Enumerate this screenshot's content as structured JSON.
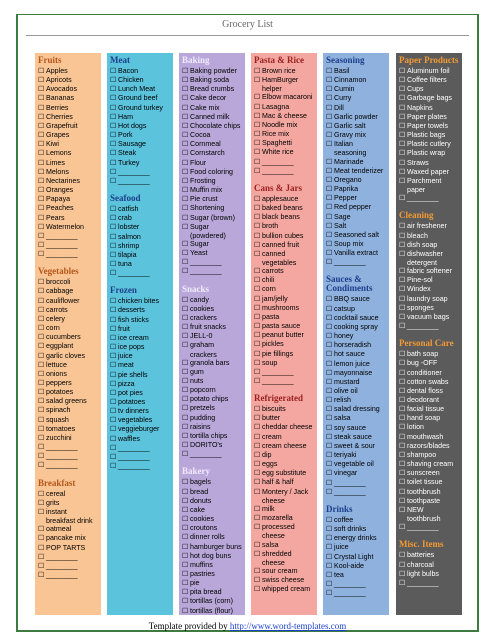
{
  "title": "Grocery List",
  "footer": {
    "text": "Template provided by",
    "link": "http://www.word-templates.com"
  },
  "columns": [
    {
      "sections": [
        {
          "heading": "Fruits",
          "items": [
            "Apples",
            "Apricots",
            "Avocados",
            "Bananas",
            "Berries",
            "Cherries",
            "Grapefruit",
            "Grapes",
            "Kiwi",
            "Lemons",
            "Limes",
            "Melons",
            "Nectarines",
            "Oranges",
            "Papaya",
            "Peaches",
            "Pears",
            "Watermelon",
            "________",
            "________",
            "________"
          ]
        },
        {
          "heading": "Vegetables",
          "items": [
            "broccoli",
            "cabbage",
            "cauliflower",
            "carrots",
            "celery",
            "corn",
            "cucumbers",
            "eggplant",
            "garlic cloves",
            "lettuce",
            "onions",
            "peppers",
            "potatoes",
            "salad greens",
            "spinach",
            "squash",
            "tomatoes",
            "zucchini",
            "________",
            "________",
            "________"
          ]
        },
        {
          "heading": "Breakfast",
          "items": [
            "cereal",
            "grits",
            "instant breakfast drink",
            "oatmeal",
            "pancake mix",
            "POP TARTS",
            "________",
            "________",
            "________"
          ]
        }
      ]
    },
    {
      "sections": [
        {
          "heading": "Meat",
          "items": [
            "Bacon",
            "Chicken",
            "Lunch Meat",
            "Ground beef",
            "Ground turkey",
            "Ham",
            "Hot dogs",
            "Pork",
            "Sausage",
            "Steak",
            "Turkey",
            "________",
            "________"
          ]
        },
        {
          "heading": "Seafood",
          "items": [
            "catfish",
            "crab",
            "lobster",
            "salmon",
            "shrimp",
            "tilapia",
            "tuna",
            "________"
          ]
        },
        {
          "heading": "Frozen",
          "items": [
            "chicken bites",
            "desserts",
            "fish sticks",
            "fruit",
            "ice cream",
            "ice pops",
            "juice",
            "meat",
            "pie shells",
            "pizza",
            "pot pies",
            "potatoes",
            "tv dinners",
            "vegetables",
            "veggieburger",
            "waffles",
            "________",
            "________",
            "________"
          ]
        }
      ]
    },
    {
      "sections": [
        {
          "heading": "Baking",
          "items": [
            "Baking powder",
            "Baking soda",
            "Bread crumbs",
            "Cake decor",
            "Cake mix",
            "Canned milk",
            "Chocolate chips",
            "Cocoa",
            "Cornmeal",
            "Cornstarch",
            "Flour",
            "Food coloring",
            "Frosting",
            "Muffin mix",
            "Pie crust",
            "Shortening",
            "Sugar (brown)",
            "Sugar (powdered)",
            "Sugar",
            "Yeast",
            "________",
            "________"
          ]
        },
        {
          "heading": "Snacks",
          "items": [
            "candy",
            "cookies",
            "crackers",
            "fruit snacks",
            "JELL-0",
            "graham crackers",
            "granola bars",
            "gum",
            "nuts",
            "popcorn",
            "potato chips",
            "pretzels",
            "pudding",
            "raisins",
            "tortilla chips",
            "DORITO's",
            "________"
          ]
        },
        {
          "heading": "Bakery",
          "items": [
            "bagels",
            "bread",
            "donuts",
            "cake",
            "cookies",
            "croutons",
            "dinner rolls",
            "hamburger buns",
            "hot dog buns",
            "muffins",
            "pastries",
            "pie",
            "pita bread",
            "tortillas (corn)",
            "tortillas (flour)",
            "________"
          ]
        }
      ]
    },
    {
      "sections": [
        {
          "heading": "Pasta & Rice",
          "items": [
            "Brown rice",
            "HamBurger helper",
            "Elbow macaroni",
            "Lasagna",
            "Mac & cheese",
            "Noodle mix",
            "Rice mix",
            "Spaghetti",
            "White rice",
            "________",
            "________"
          ]
        },
        {
          "heading": "Cans & Jars",
          "items": [
            "applesauce",
            "baked beans",
            "black beans",
            "broth",
            "bullion cubes",
            "canned fruit",
            "canned vegetables",
            "carrots",
            "chili",
            "corn",
            "jam/jelly",
            "mushrooms",
            "pasta",
            "pasta sauce",
            "peanut butter",
            "pickles",
            "pie fillings",
            "soup",
            "________",
            "________"
          ]
        },
        {
          "heading": "Refrigerated",
          "items": [
            "biscuits",
            "butter",
            "cheddar cheese",
            "cream",
            "cream cheese",
            "dip",
            "eggs",
            "egg substitute",
            "half & half",
            "Montery / Jack cheese",
            "milk",
            "mozarella",
            "processed cheese",
            "salsa",
            "shredded cheese",
            "sour cream",
            "swiss cheese",
            "whipped cream"
          ]
        }
      ]
    },
    {
      "sections": [
        {
          "heading": "Seasoning",
          "items": [
            "Basil",
            "Cinnamon",
            "Cumin",
            "Curry",
            "Dill",
            "Garlic powder",
            "Garlic salt",
            "Gravy mix",
            "Italian seasoning",
            "Marinade",
            "Meat tenderizer",
            "Oregano",
            "Paprika",
            "Pepper",
            "Red pepper",
            "Sage",
            "Salt",
            "Seasoned salt",
            "Soup mix",
            "Vanilla extract",
            "________"
          ]
        },
        {
          "heading": "Sauces & Condiments",
          "items": [
            "BBQ sauce",
            "catsup",
            "cocktail sauce",
            "cooking spray",
            "honey",
            "horseradish",
            "hot sauce",
            "lemon juice",
            "mayonnaise",
            "mustard",
            "olive oil",
            "relish",
            "salad dressing",
            "salsa",
            "soy sauce",
            "steak sauce",
            "sweet & sour",
            "teriyaki",
            "vegetable oil",
            "vinegar",
            "________",
            "________"
          ]
        },
        {
          "heading": "Drinks",
          "items": [
            "coffee",
            "soft drinks",
            "energy drinks",
            "juice",
            "Crystal Light",
            "Kool-aide",
            "tea",
            "________",
            "________"
          ]
        }
      ]
    },
    {
      "sections": [
        {
          "heading": "Paper Products",
          "items": [
            "Aluminum foil",
            "Coffee filters",
            "Cups",
            "Garbage bags",
            "Napkins",
            "Paper plates",
            "Paper towels",
            "Plastic bags",
            "Plastic cutlery",
            "Plastic wrap",
            "Straws",
            "Waxed paper",
            "Parchment paper",
            "________"
          ]
        },
        {
          "heading": "Cleaning",
          "items": [
            "air freshener",
            "bleach",
            "dish soap",
            "dishwasher detergent",
            "fabric softener",
            "Pine-sol",
            "Windex",
            "laundry soap",
            "sponges",
            "vacuum bags",
            "________"
          ]
        },
        {
          "heading": "Personal Care",
          "items": [
            "bath soap",
            "bug -OFF",
            "conditioner",
            "cotton swabs",
            "dental floss",
            "deodorant",
            "facial tissue",
            "hand soap",
            "lotion",
            "mouthwash",
            "razors/blades",
            "shampoo",
            "shaving cream",
            "sunscreen",
            "toilet tissue",
            "toothbrush",
            "toothpaste",
            "NEW toothbrush",
            "________"
          ]
        },
        {
          "heading": "Misc. Items",
          "items": [
            "batteries",
            "charcoal",
            "light bulbs",
            "________"
          ]
        }
      ]
    }
  ]
}
